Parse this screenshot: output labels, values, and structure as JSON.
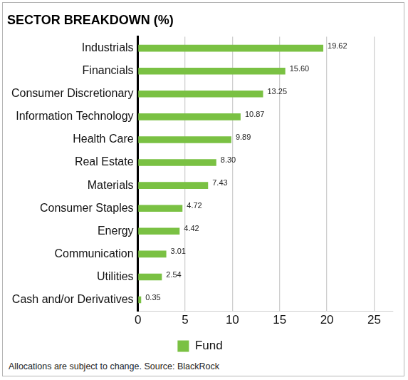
{
  "chart_data": {
    "type": "bar",
    "orientation": "horizontal",
    "title": "SECTOR BREAKDOWN (%)",
    "categories": [
      "Industrials",
      "Financials",
      "Consumer Discretionary",
      "Information Technology",
      "Health Care",
      "Real Estate",
      "Materials",
      "Consumer Staples",
      "Energy",
      "Communication",
      "Utilities",
      "Cash and/or Derivatives"
    ],
    "series": [
      {
        "name": "Fund",
        "color": "#7ac143",
        "values": [
          19.62,
          15.6,
          13.25,
          10.87,
          9.89,
          8.3,
          7.43,
          4.72,
          4.42,
          3.01,
          2.54,
          0.35
        ],
        "value_labels": [
          "19.62",
          "15.60",
          "13.25",
          "10.87",
          "9.89",
          "8.30",
          "7.43",
          "4.72",
          "4.42",
          "3.01",
          "2.54",
          "0.35"
        ]
      }
    ],
    "xlim": [
      0,
      27
    ],
    "xticks": [
      0,
      5,
      10,
      15,
      20,
      25
    ],
    "grid": true,
    "legend": "bottom",
    "data_labels": true,
    "annotations": [
      "Allocations are subject to change. Source: BlackRock"
    ]
  }
}
